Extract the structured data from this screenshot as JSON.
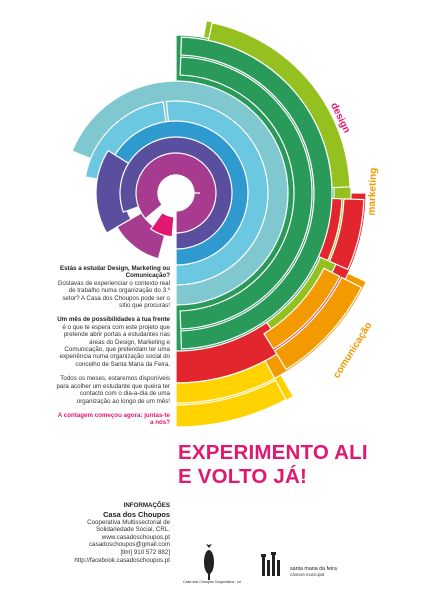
{
  "labels": {
    "design": "design",
    "marketing": "marketing",
    "comunicacao": "comunicação"
  },
  "copy": {
    "q_heading": "Estás a estudar Design, Marketing ou Comunicação?",
    "q_text": "Gostavas de experienciar o contexto real de trabalho numa organização do 3.º setor? A Casa dos Choupos pode ser o sítio que procuras!",
    "month_heading": "Um mês de possibilidades à tua frente",
    "month_text": "é o que te espera com este projeto que pretende abrir portas a estudantes nas áreas do Design, Marketing e Comunicação, que pretendam ter uma experiência numa organização social do concelho de Santa Maria da Feira.",
    "availability": "Todos os meses, estaremos disponíveis para acolher um estudante que queira ter contacto com o dia-a-dia de uma organização ao longo de um mês!",
    "cta": "A contagem começou agora: juntas-te a nós?"
  },
  "info": {
    "title": "INFORMAÇÕES",
    "org": "Casa dos Choupos",
    "desc": "Cooperativa Multissectorial de Solidariedade Social, CRL.",
    "web": "www.casadoschoupos.pt",
    "email": "casadoschoupos@gmail.com",
    "phone": "[tlm] 910 572 882]",
    "facebook": "http://facebook.casadoschoupos.pt"
  },
  "headline": {
    "line1": "EXPERIMENTO ALI",
    "line2": "E VOLTO JÁ!"
  },
  "logos": {
    "casa_text": "Casa dos Choupos Cooperativa · crl",
    "smf_name": "santa maria da feira",
    "smf_sub": "câmara municipal"
  },
  "colors": {
    "magenta": "#e2176f",
    "purple": "#a73b8f",
    "indigo": "#5a4e9f",
    "blue": "#2e9ad0",
    "light_blue": "#6cc8e0",
    "teal": "#7fc8d0",
    "green": "#2a9a5a",
    "lime": "#94c11f",
    "red": "#e3262d",
    "orange": "#f29a00",
    "yellow": "#ffd200"
  },
  "wheel": {
    "center_label": ""
  }
}
